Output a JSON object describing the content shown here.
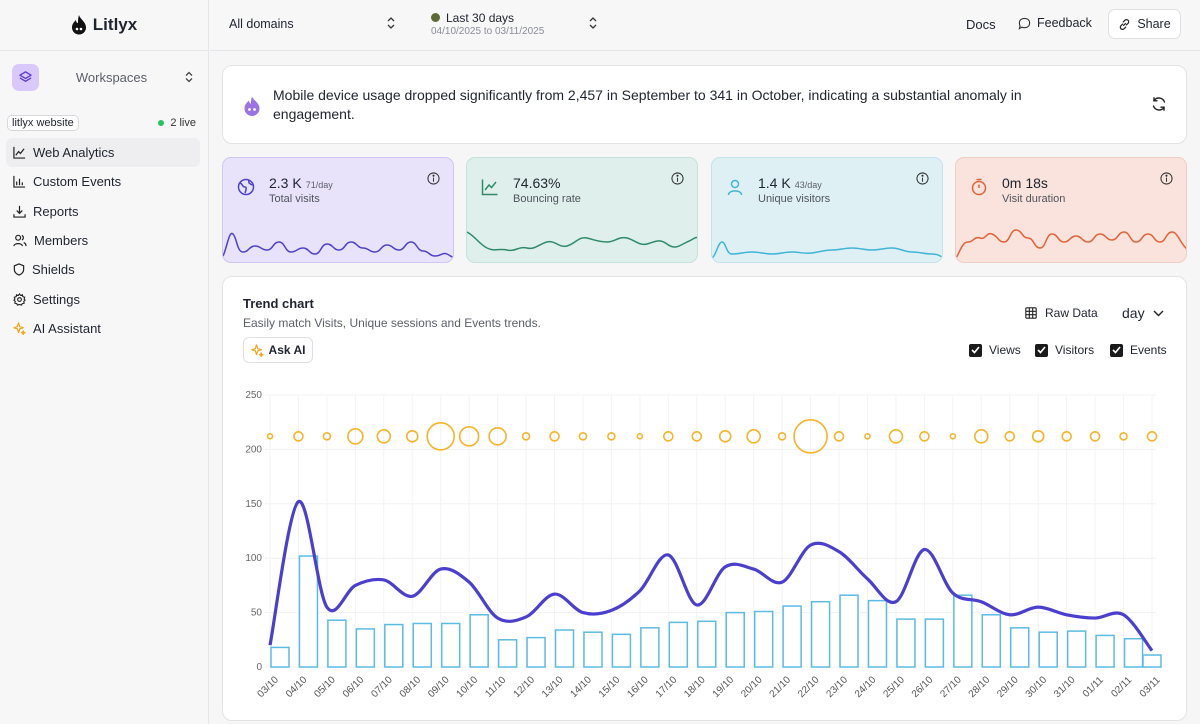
{
  "app": {
    "name": "Litlyx"
  },
  "sidebar": {
    "workspace_label": "Workspaces",
    "project_name": "litlyx website",
    "live_label": "2 live",
    "items": [
      {
        "label": "Web Analytics",
        "icon": "line-chart-icon"
      },
      {
        "label": "Custom Events",
        "icon": "bar-chart-icon"
      },
      {
        "label": "Reports",
        "icon": "download-icon"
      },
      {
        "label": "Members",
        "icon": "users-icon"
      },
      {
        "label": "Shields",
        "icon": "shield-icon"
      },
      {
        "label": "Settings",
        "icon": "gear-icon"
      },
      {
        "label": "AI Assistant",
        "icon": "sparkle-icon"
      }
    ]
  },
  "topbar": {
    "domain": "All domains",
    "period_title": "Last 30 days",
    "period_range": "04/10/2025 to 03/11/2025",
    "docs": "Docs",
    "feedback": "Feedback",
    "share": "Share"
  },
  "insight": {
    "text": "Mobile device usage dropped significantly from 2,457 in September to 341 in October, indicating a substantial anomaly in engagement."
  },
  "kpis": [
    {
      "value": "2.3 K",
      "per_day": "71/day",
      "label": "Total visits",
      "color": "#4e41c8",
      "bg": "#e8e3fa",
      "border": "#cfc6f2",
      "icon": "globe-icon"
    },
    {
      "value": "74.63%",
      "per_day": "",
      "label": "Bouncing rate",
      "color": "#2f8a68",
      "bg": "#dff0ec",
      "border": "#c3e2d9",
      "icon": "trend-icon"
    },
    {
      "value": "1.4 K",
      "per_day": "43/day",
      "label": "Unique visitors",
      "color": "#41b4d6",
      "bg": "#dff0f5",
      "border": "#c3e2ec",
      "icon": "user-icon"
    },
    {
      "value": "0m 18s",
      "per_day": "",
      "label": "Visit duration",
      "color": "#e0633a",
      "bg": "#f9e3dc",
      "border": "#efcdc2",
      "icon": "timer-icon"
    }
  ],
  "trend": {
    "title": "Trend chart",
    "subtitle": "Easily match Visits, Unique sessions and Events trends.",
    "ask_ai": "Ask AI",
    "raw_data": "Raw Data",
    "granularity": "day",
    "checkboxes": {
      "views": "Views",
      "visitors": "Visitors",
      "events": "Events"
    }
  },
  "chart_data": {
    "type": "bar",
    "categories": [
      "03/10",
      "04/10",
      "05/10",
      "06/10",
      "07/10",
      "08/10",
      "09/10",
      "10/10",
      "11/10",
      "12/10",
      "13/10",
      "14/10",
      "15/10",
      "16/10",
      "17/10",
      "18/10",
      "19/10",
      "20/10",
      "21/10",
      "22/10",
      "23/10",
      "24/10",
      "25/10",
      "26/10",
      "27/10",
      "28/10",
      "29/10",
      "30/10",
      "31/10",
      "01/11",
      "02/11",
      "03/11"
    ],
    "yticks": [
      0,
      50,
      100,
      150,
      200,
      250
    ],
    "ylim": [
      0,
      250
    ],
    "series": [
      {
        "name": "Visitors",
        "type": "bar",
        "color": "#5bbbe3",
        "values": [
          18,
          102,
          43,
          35,
          39,
          40,
          40,
          48,
          25,
          27,
          34,
          32,
          30,
          36,
          41,
          42,
          50,
          51,
          56,
          60,
          66,
          61,
          44,
          44,
          66,
          48,
          36,
          32,
          33,
          29,
          26,
          11
        ]
      },
      {
        "name": "Views",
        "type": "line",
        "color": "#4b3fcf",
        "values": [
          20,
          152,
          55,
          75,
          80,
          65,
          90,
          78,
          45,
          46,
          67,
          50,
          52,
          70,
          103,
          57,
          92,
          90,
          78,
          112,
          106,
          81,
          60,
          108,
          68,
          60,
          48,
          55,
          48,
          45,
          48,
          15
        ]
      },
      {
        "name": "Events",
        "type": "bubble",
        "color": "#f5b428",
        "values": [
          1,
          3,
          2,
          6,
          5,
          4,
          12,
          8,
          7,
          2,
          3,
          2,
          2,
          1,
          3,
          3,
          4,
          5,
          2,
          15,
          3,
          1,
          5,
          3,
          1,
          5,
          3,
          4,
          3,
          3,
          2,
          3
        ]
      }
    ]
  }
}
